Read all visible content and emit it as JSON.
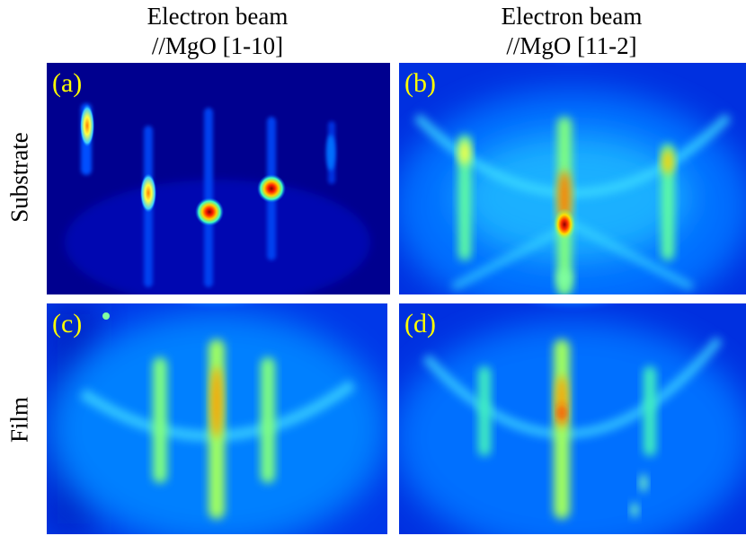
{
  "figure": {
    "columns": [
      {
        "line1": "Electron beam",
        "line2": "//MgO [1-10]"
      },
      {
        "line1": "Electron beam",
        "line2": "//MgO [11-2]"
      }
    ],
    "rows": [
      "Substrate",
      "Film"
    ],
    "panels": [
      {
        "label": "(a)",
        "colormap": "jet"
      },
      {
        "label": "(b)",
        "colormap": "jet"
      },
      {
        "label": "(c)",
        "colormap": "jet"
      },
      {
        "label": "(d)",
        "colormap": "jet"
      }
    ]
  }
}
